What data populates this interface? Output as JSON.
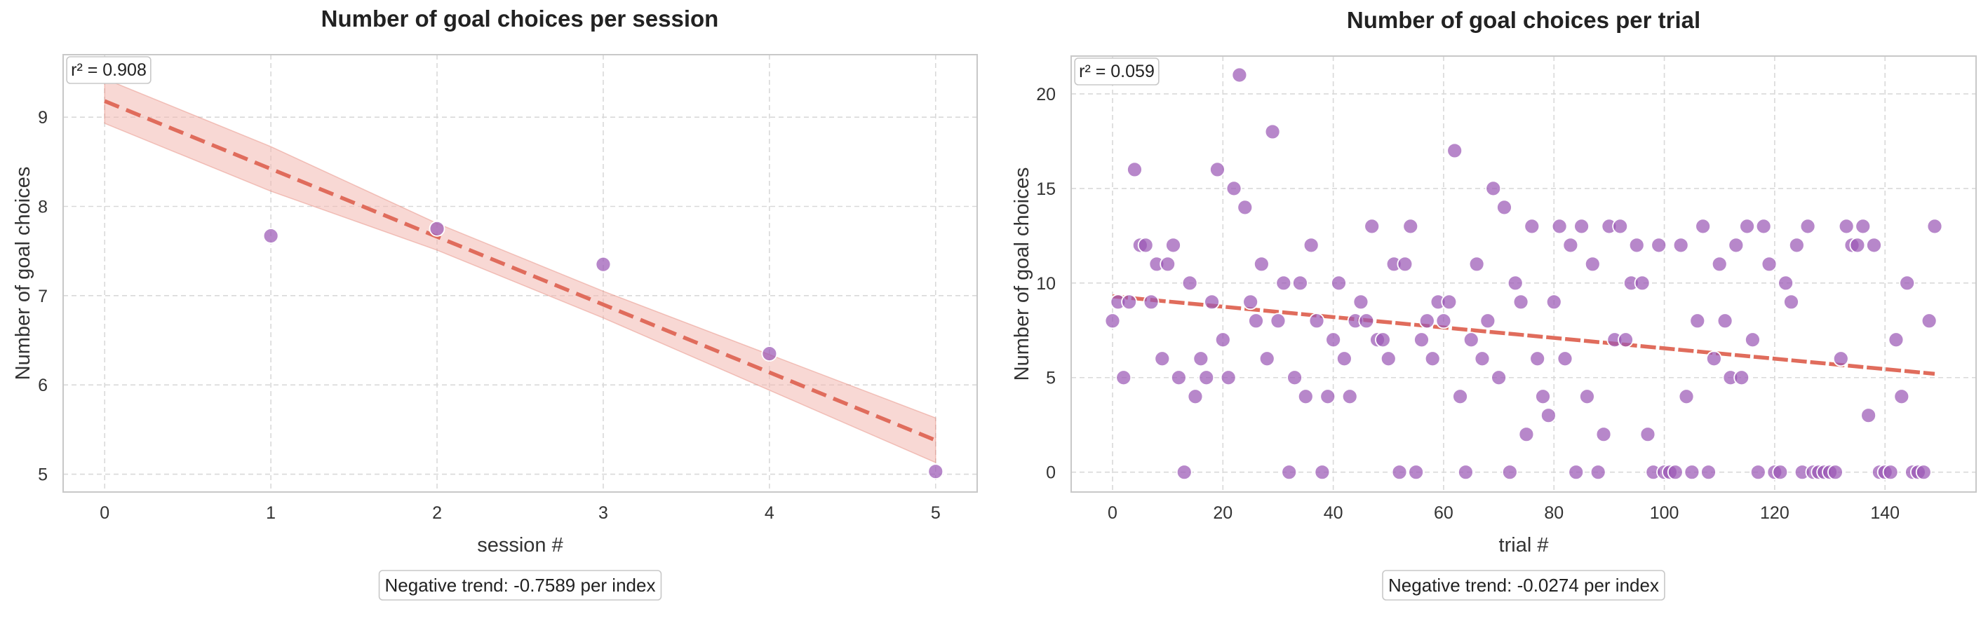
{
  "chart_data": [
    {
      "type": "scatter",
      "title": "Number of goal choices per session",
      "xlabel": "session #",
      "ylabel": "Number of goal choices",
      "xlim": [
        -0.25,
        5.25
      ],
      "ylim": [
        4.8,
        9.7
      ],
      "xticks": [
        0,
        1,
        2,
        3,
        4,
        5
      ],
      "yticks": [
        5,
        6,
        7,
        8,
        9
      ],
      "x": [
        0,
        1,
        2,
        3,
        4,
        5
      ],
      "y": [
        9.5,
        7.67,
        7.75,
        7.35,
        6.35,
        5.03
      ],
      "trend": {
        "start": [
          0,
          9.18
        ],
        "end": [
          5,
          5.38
        ],
        "band_halfwidth": [
          0.25,
          0.25,
          0.15,
          0.15,
          0.2,
          0.25
        ]
      },
      "annotation": "r² = 0.908",
      "trend_label": "Negative trend: -0.7589 per index",
      "point_color": "#9b59b6",
      "line_color": "#e06c5c",
      "band_color": "#f2b8b0",
      "grid": true
    },
    {
      "type": "scatter",
      "title": "Number of goal choices per trial",
      "xlabel": "trial #",
      "ylabel": "Number of goal choices",
      "xlim": [
        -7.5,
        156.5
      ],
      "ylim": [
        -1.05,
        22.0
      ],
      "xticks": [
        0,
        20,
        40,
        60,
        80,
        100,
        120,
        140
      ],
      "yticks": [
        0,
        5,
        10,
        15,
        20
      ],
      "points": [
        [
          0,
          8
        ],
        [
          1,
          9
        ],
        [
          2,
          5
        ],
        [
          3,
          9
        ],
        [
          4,
          16
        ],
        [
          5,
          12
        ],
        [
          6,
          12
        ],
        [
          7,
          9
        ],
        [
          8,
          11
        ],
        [
          9,
          6
        ],
        [
          10,
          11
        ],
        [
          11,
          12
        ],
        [
          12,
          5
        ],
        [
          13,
          0
        ],
        [
          14,
          10
        ],
        [
          15,
          4
        ],
        [
          16,
          6
        ],
        [
          17,
          5
        ],
        [
          18,
          9
        ],
        [
          19,
          16
        ],
        [
          20,
          7
        ],
        [
          21,
          5
        ],
        [
          22,
          15
        ],
        [
          23,
          21
        ],
        [
          24,
          14
        ],
        [
          25,
          9
        ],
        [
          26,
          8
        ],
        [
          27,
          11
        ],
        [
          28,
          6
        ],
        [
          29,
          18
        ],
        [
          30,
          8
        ],
        [
          31,
          10
        ],
        [
          32,
          0
        ],
        [
          33,
          5
        ],
        [
          34,
          10
        ],
        [
          35,
          4
        ],
        [
          36,
          12
        ],
        [
          37,
          8
        ],
        [
          38,
          0
        ],
        [
          39,
          4
        ],
        [
          40,
          7
        ],
        [
          41,
          10
        ],
        [
          42,
          6
        ],
        [
          43,
          4
        ],
        [
          44,
          8
        ],
        [
          45,
          9
        ],
        [
          46,
          8
        ],
        [
          47,
          13
        ],
        [
          48,
          7
        ],
        [
          49,
          7
        ],
        [
          50,
          6
        ],
        [
          51,
          11
        ],
        [
          52,
          0
        ],
        [
          53,
          11
        ],
        [
          54,
          13
        ],
        [
          55,
          0
        ],
        [
          56,
          7
        ],
        [
          57,
          8
        ],
        [
          58,
          6
        ],
        [
          59,
          9
        ],
        [
          60,
          8
        ],
        [
          61,
          9
        ],
        [
          62,
          17
        ],
        [
          63,
          4
        ],
        [
          64,
          0
        ],
        [
          65,
          7
        ],
        [
          66,
          11
        ],
        [
          67,
          6
        ],
        [
          68,
          8
        ],
        [
          69,
          15
        ],
        [
          70,
          5
        ],
        [
          71,
          14
        ],
        [
          72,
          0
        ],
        [
          73,
          10
        ],
        [
          74,
          9
        ],
        [
          75,
          2
        ],
        [
          76,
          13
        ],
        [
          77,
          6
        ],
        [
          78,
          4
        ],
        [
          79,
          3
        ],
        [
          80,
          9
        ],
        [
          81,
          13
        ],
        [
          82,
          6
        ],
        [
          83,
          12
        ],
        [
          84,
          0
        ],
        [
          85,
          13
        ],
        [
          86,
          4
        ],
        [
          87,
          11
        ],
        [
          88,
          0
        ],
        [
          89,
          2
        ],
        [
          90,
          13
        ],
        [
          91,
          7
        ],
        [
          92,
          13
        ],
        [
          93,
          7
        ],
        [
          94,
          10
        ],
        [
          95,
          12
        ],
        [
          96,
          10
        ],
        [
          97,
          2
        ],
        [
          98,
          0
        ],
        [
          99,
          12
        ],
        [
          100,
          0
        ],
        [
          101,
          0
        ],
        [
          102,
          0
        ],
        [
          103,
          12
        ],
        [
          104,
          4
        ],
        [
          105,
          0
        ],
        [
          106,
          8
        ],
        [
          107,
          13
        ],
        [
          108,
          0
        ],
        [
          109,
          6
        ],
        [
          110,
          11
        ],
        [
          111,
          8
        ],
        [
          112,
          5
        ],
        [
          113,
          12
        ],
        [
          114,
          5
        ],
        [
          115,
          13
        ],
        [
          116,
          7
        ],
        [
          117,
          0
        ],
        [
          118,
          13
        ],
        [
          119,
          11
        ],
        [
          120,
          0
        ],
        [
          121,
          0
        ],
        [
          122,
          10
        ],
        [
          123,
          9
        ],
        [
          124,
          12
        ],
        [
          125,
          0
        ],
        [
          126,
          13
        ],
        [
          127,
          0
        ],
        [
          128,
          0
        ],
        [
          129,
          0
        ],
        [
          130,
          0
        ],
        [
          131,
          0
        ],
        [
          132,
          6
        ],
        [
          133,
          13
        ],
        [
          134,
          12
        ],
        [
          135,
          12
        ],
        [
          136,
          13
        ],
        [
          137,
          3
        ],
        [
          138,
          12
        ],
        [
          139,
          0
        ],
        [
          140,
          0
        ],
        [
          141,
          0
        ],
        [
          142,
          7
        ],
        [
          143,
          4
        ],
        [
          144,
          10
        ],
        [
          145,
          0
        ],
        [
          146,
          0
        ],
        [
          147,
          0
        ],
        [
          148,
          8
        ],
        [
          149,
          13
        ]
      ],
      "trend": {
        "start": [
          0,
          9.3
        ],
        "end": [
          149,
          5.2
        ]
      },
      "annotation": "r² = 0.059",
      "trend_label": "Negative trend: -0.0274 per index",
      "point_color": "#9b59b6",
      "line_color": "#e06c5c",
      "grid": true
    }
  ]
}
